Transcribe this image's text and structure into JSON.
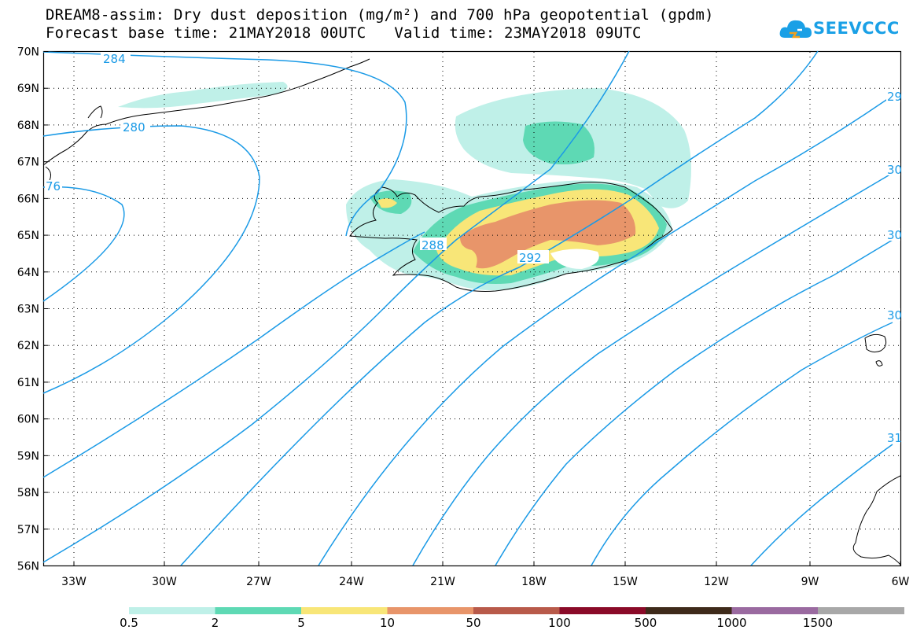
{
  "header": {
    "title_line1": "DREAM8-assim: Dry dust deposition (mg/m²) and 700 hPa geopotential (gpdm)",
    "forecast_base": "Forecast base time: 21MAY2018 00UTC",
    "valid_time": "Valid time: 23MAY2018 09UTC"
  },
  "logo": {
    "text": "SEEVCCC",
    "icon": "cloud-icon"
  },
  "map": {
    "lat_labels": [
      "70N",
      "69N",
      "68N",
      "67N",
      "66N",
      "65N",
      "64N",
      "63N",
      "62N",
      "61N",
      "60N",
      "59N",
      "58N",
      "57N",
      "56N"
    ],
    "lon_labels": [
      "33W",
      "30W",
      "27W",
      "24W",
      "21W",
      "18W",
      "15W",
      "12W",
      "9W",
      "6W"
    ],
    "contour_labels": [
      "284",
      "280",
      "76",
      "288",
      "292",
      "29",
      "30",
      "30",
      "30",
      "31"
    ],
    "colors": {
      "contour": "#1a9ae6",
      "coast": "#000000"
    }
  },
  "legend": {
    "colors": [
      "#bff0e8",
      "#5ed9b4",
      "#f8e678",
      "#e8956a",
      "#b85a4a",
      "#8a0a28",
      "#3e2a1a",
      "#9a6aa0",
      "#a8a8a8"
    ],
    "labels": [
      "0.5",
      "2",
      "5",
      "10",
      "50",
      "100",
      "500",
      "1000",
      "1500"
    ]
  }
}
